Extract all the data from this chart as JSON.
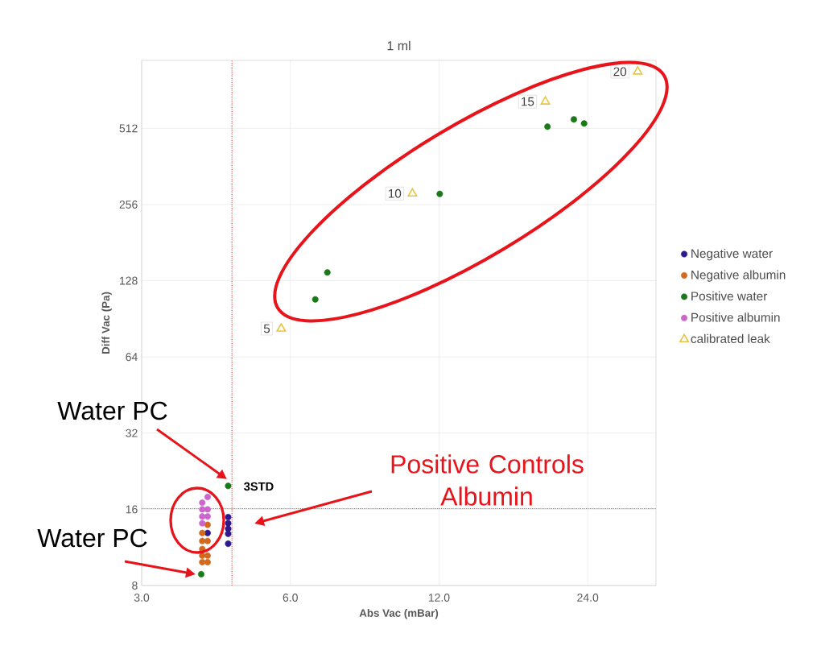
{
  "chart_data": {
    "type": "scatter",
    "title": "1 ml",
    "xlabel": "Abs Vac (mBar)",
    "ylabel": "Diff Vac (Pa)",
    "log": "xy",
    "grid": true,
    "legend": "right",
    "xlim": [
      3,
      33
    ],
    "ylim": [
      8,
      950
    ],
    "xticks": [
      {
        "value": 3,
        "label": "3.0"
      },
      {
        "value": 6,
        "label": "6.0"
      },
      {
        "value": 12,
        "label": "12.0"
      },
      {
        "value": 24,
        "label": "24.0"
      }
    ],
    "yticks": [
      8,
      16,
      32,
      64,
      128,
      256,
      512
    ],
    "series": [
      {
        "name": "Negative water",
        "color": "#2e1a8c",
        "marker": "circle",
        "x": [
          4.08,
          4.49,
          4.49,
          4.49,
          4.49,
          4.49
        ],
        "values": [
          12.9,
          14.9,
          14.1,
          13.4,
          12.8,
          11.7
        ]
      },
      {
        "name": "Negative albumin",
        "color": "#d2691e",
        "marker": "circle",
        "x": [
          4.08,
          3.98,
          3.98,
          4.08,
          3.98,
          3.98,
          4.08,
          3.98,
          4.08
        ],
        "values": [
          13.9,
          12.9,
          12.0,
          12.0,
          11.15,
          10.5,
          10.5,
          9.9,
          9.9
        ]
      },
      {
        "name": "Positive water",
        "color": "#1a7a1a",
        "marker": "circle",
        "x": [
          6.74,
          7.13,
          12.04,
          19.9,
          22.5,
          23.6,
          4.49,
          3.96
        ],
        "values": [
          108,
          138,
          282,
          520,
          555,
          535,
          19.8,
          8.87
        ]
      },
      {
        "name": "Positive albumin",
        "color": "#cc66cc",
        "marker": "circle",
        "x": [
          4.08,
          3.98,
          4.08,
          3.98,
          4.08,
          3.98,
          3.98
        ],
        "values": [
          17.9,
          17.0,
          16.0,
          16.0,
          15.0,
          15.0,
          14.1
        ]
      },
      {
        "name": "calibrated leak",
        "color": "#e8c547",
        "marker": "triangle",
        "x": [
          5.75,
          10.6,
          19.7,
          30.3
        ],
        "values": [
          82.8,
          283,
          653,
          858
        ]
      }
    ],
    "ref_lines": [
      {
        "axis": "x",
        "value": 4.57,
        "color": "#c0504d",
        "line_style": "dotted"
      },
      {
        "axis": "y",
        "value": 16.1,
        "color": "#c0504d",
        "line_style": "dotted",
        "label": "3STD"
      }
    ],
    "annotations": [
      "Water PC",
      "Water PC",
      "Positive Controls Albumin",
      {
        "text": "5",
        "x": 5.75,
        "y": 82.8
      },
      {
        "text": "10",
        "x": 10.6,
        "y": 283
      },
      {
        "text": "15",
        "x": 19.7,
        "y": 653
      },
      {
        "text": "20",
        "x": 30.3,
        "y": 858
      }
    ]
  }
}
